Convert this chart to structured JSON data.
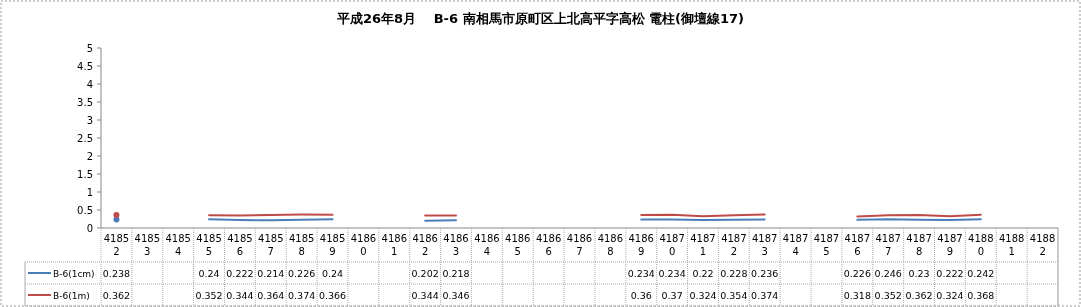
{
  "chart_data": {
    "type": "line",
    "title": "平成26年8月　 B-6 南相馬市原町区上北高平字高松  電柱(御壇線17)",
    "categories": [
      "41852",
      "41853",
      "41854",
      "41855",
      "41856",
      "41857",
      "41858",
      "41859",
      "41860",
      "41861",
      "41862",
      "41863",
      "41864",
      "41865",
      "41866",
      "41867",
      "41868",
      "41869",
      "41870",
      "41871",
      "41872",
      "41873",
      "41874",
      "41875",
      "41876",
      "41877",
      "41878",
      "41879",
      "41880",
      "41881",
      "41882"
    ],
    "series": [
      {
        "name": "B-6(1cm)",
        "color": "#4a7ebb",
        "values": [
          0.238,
          null,
          null,
          0.24,
          0.222,
          0.214,
          0.226,
          0.24,
          null,
          null,
          0.202,
          0.218,
          null,
          null,
          null,
          null,
          null,
          0.234,
          0.234,
          0.22,
          0.228,
          0.236,
          null,
          null,
          0.226,
          0.246,
          0.23,
          0.222,
          0.242,
          null,
          null
        ]
      },
      {
        "name": "B-6(1m)",
        "color": "#be4b48",
        "values": [
          0.362,
          null,
          null,
          0.352,
          0.344,
          0.364,
          0.374,
          0.366,
          null,
          null,
          0.344,
          0.346,
          null,
          null,
          null,
          null,
          null,
          0.36,
          0.37,
          0.324,
          0.354,
          0.374,
          null,
          null,
          0.318,
          0.352,
          0.362,
          0.324,
          0.368,
          null,
          null
        ]
      }
    ],
    "ylim": [
      0,
      5
    ],
    "yticks": [
      0,
      0.5,
      1,
      1.5,
      2,
      2.5,
      3,
      3.5,
      4,
      4.5,
      5
    ],
    "grid": false,
    "legend": "bottom",
    "data_labels": true,
    "marker": "none",
    "line_style": "solid"
  }
}
